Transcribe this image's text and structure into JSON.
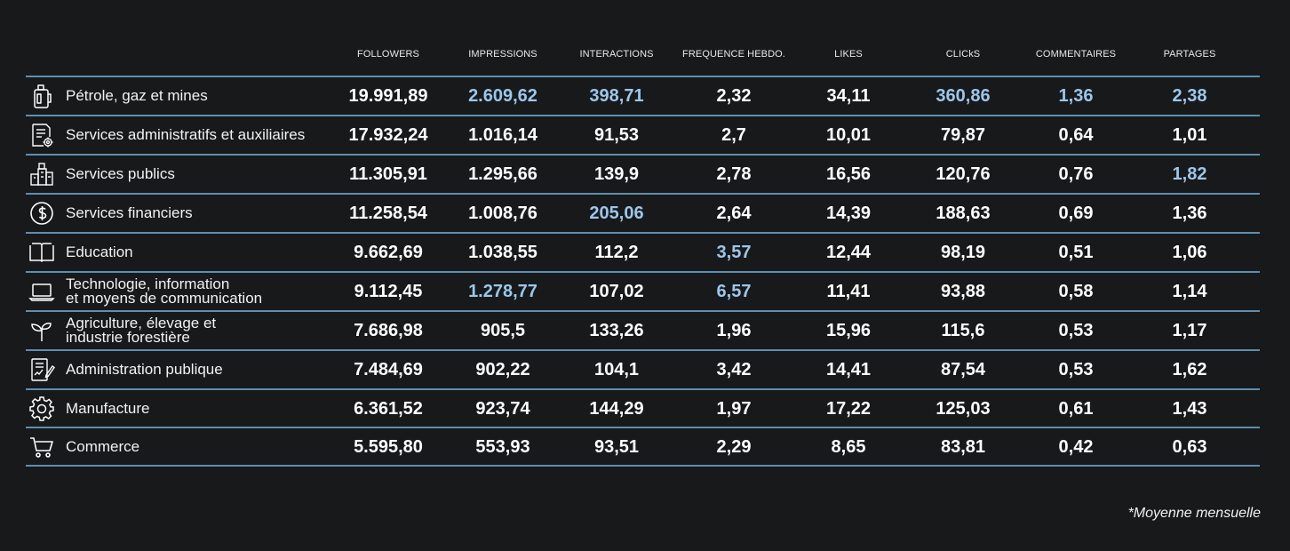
{
  "chart_data": {
    "type": "table",
    "columns": [
      "FOLLOWERS",
      "IMPRESSIONS",
      "INTERACTIONS",
      "FREQUENCE HEBDO.",
      "LIKES",
      "CLICkS",
      "COMMENTAIRES",
      "PARTAGES"
    ],
    "rows": [
      {
        "label": "Pétrole, gaz et mines",
        "icon": "oil-can-icon",
        "values": [
          "19.991,89",
          "2.609,62",
          "398,71",
          "2,32",
          "34,11",
          "360,86",
          "1,36",
          "2,38"
        ],
        "highlight": [
          false,
          true,
          true,
          false,
          false,
          true,
          true,
          true
        ]
      },
      {
        "label": "Services administratifs et auxiliaires",
        "icon": "document-gear-icon",
        "values": [
          "17.932,24",
          "1.016,14",
          "91,53",
          "2,7",
          "10,01",
          "79,87",
          "0,64",
          "1,01"
        ],
        "highlight": [
          false,
          false,
          false,
          false,
          false,
          false,
          false,
          false
        ]
      },
      {
        "label": "Services publics",
        "icon": "public-buildings-icon",
        "values": [
          "11.305,91",
          "1.295,66",
          "139,9",
          "2,78",
          "16,56",
          "120,76",
          "0,76",
          "1,82"
        ],
        "highlight": [
          false,
          false,
          false,
          false,
          false,
          false,
          false,
          true
        ]
      },
      {
        "label": "Services financiers",
        "icon": "dollar-coin-icon",
        "values": [
          "11.258,54",
          "1.008,76",
          "205,06",
          "2,64",
          "14,39",
          "188,63",
          "0,69",
          "1,36"
        ],
        "highlight": [
          false,
          false,
          true,
          false,
          false,
          false,
          false,
          false
        ]
      },
      {
        "label": "Education",
        "icon": "open-book-icon",
        "values": [
          "9.662,69",
          "1.038,55",
          "112,2",
          "3,57",
          "12,44",
          "98,19",
          "0,51",
          "1,06"
        ],
        "highlight": [
          false,
          false,
          false,
          true,
          false,
          false,
          false,
          false
        ]
      },
      {
        "label": "Technologie, information\net moyens de communication",
        "icon": "laptop-icon",
        "values": [
          "9.112,45",
          "1.278,77",
          "107,02",
          "6,57",
          "11,41",
          "93,88",
          "0,58",
          "1,14"
        ],
        "highlight": [
          false,
          true,
          false,
          true,
          false,
          false,
          false,
          false
        ]
      },
      {
        "label": "Agriculture, élevage et\nindustrie forestière",
        "icon": "sprout-icon",
        "values": [
          "7.686,98",
          "905,5",
          "133,26",
          "1,96",
          "15,96",
          "115,6",
          "0,53",
          "1,17"
        ],
        "highlight": [
          false,
          false,
          false,
          false,
          false,
          false,
          false,
          false
        ]
      },
      {
        "label": "Administration publique",
        "icon": "document-pen-icon",
        "values": [
          "7.484,69",
          "902,22",
          "104,1",
          "3,42",
          "14,41",
          "87,54",
          "0,53",
          "1,62"
        ],
        "highlight": [
          false,
          false,
          false,
          false,
          false,
          false,
          false,
          false
        ]
      },
      {
        "label": "Manufacture",
        "icon": "gear-icon",
        "values": [
          "6.361,52",
          "923,74",
          "144,29",
          "1,97",
          "17,22",
          "125,03",
          "0,61",
          "1,43"
        ],
        "highlight": [
          false,
          false,
          false,
          false,
          false,
          false,
          false,
          false
        ]
      },
      {
        "label": "Commerce",
        "icon": "shopping-cart-icon",
        "values": [
          "5.595,80",
          "553,93",
          "93,51",
          "2,29",
          "8,65",
          "83,81",
          "0,42",
          "0,63"
        ],
        "highlight": [
          false,
          false,
          false,
          false,
          false,
          false,
          false,
          false
        ]
      }
    ],
    "footnote": "*Moyenne mensuelle",
    "colors": {
      "background": "#18191b",
      "text": "#ffffff",
      "highlight": "#9cc7ea",
      "rule": "#5e8fae"
    }
  }
}
